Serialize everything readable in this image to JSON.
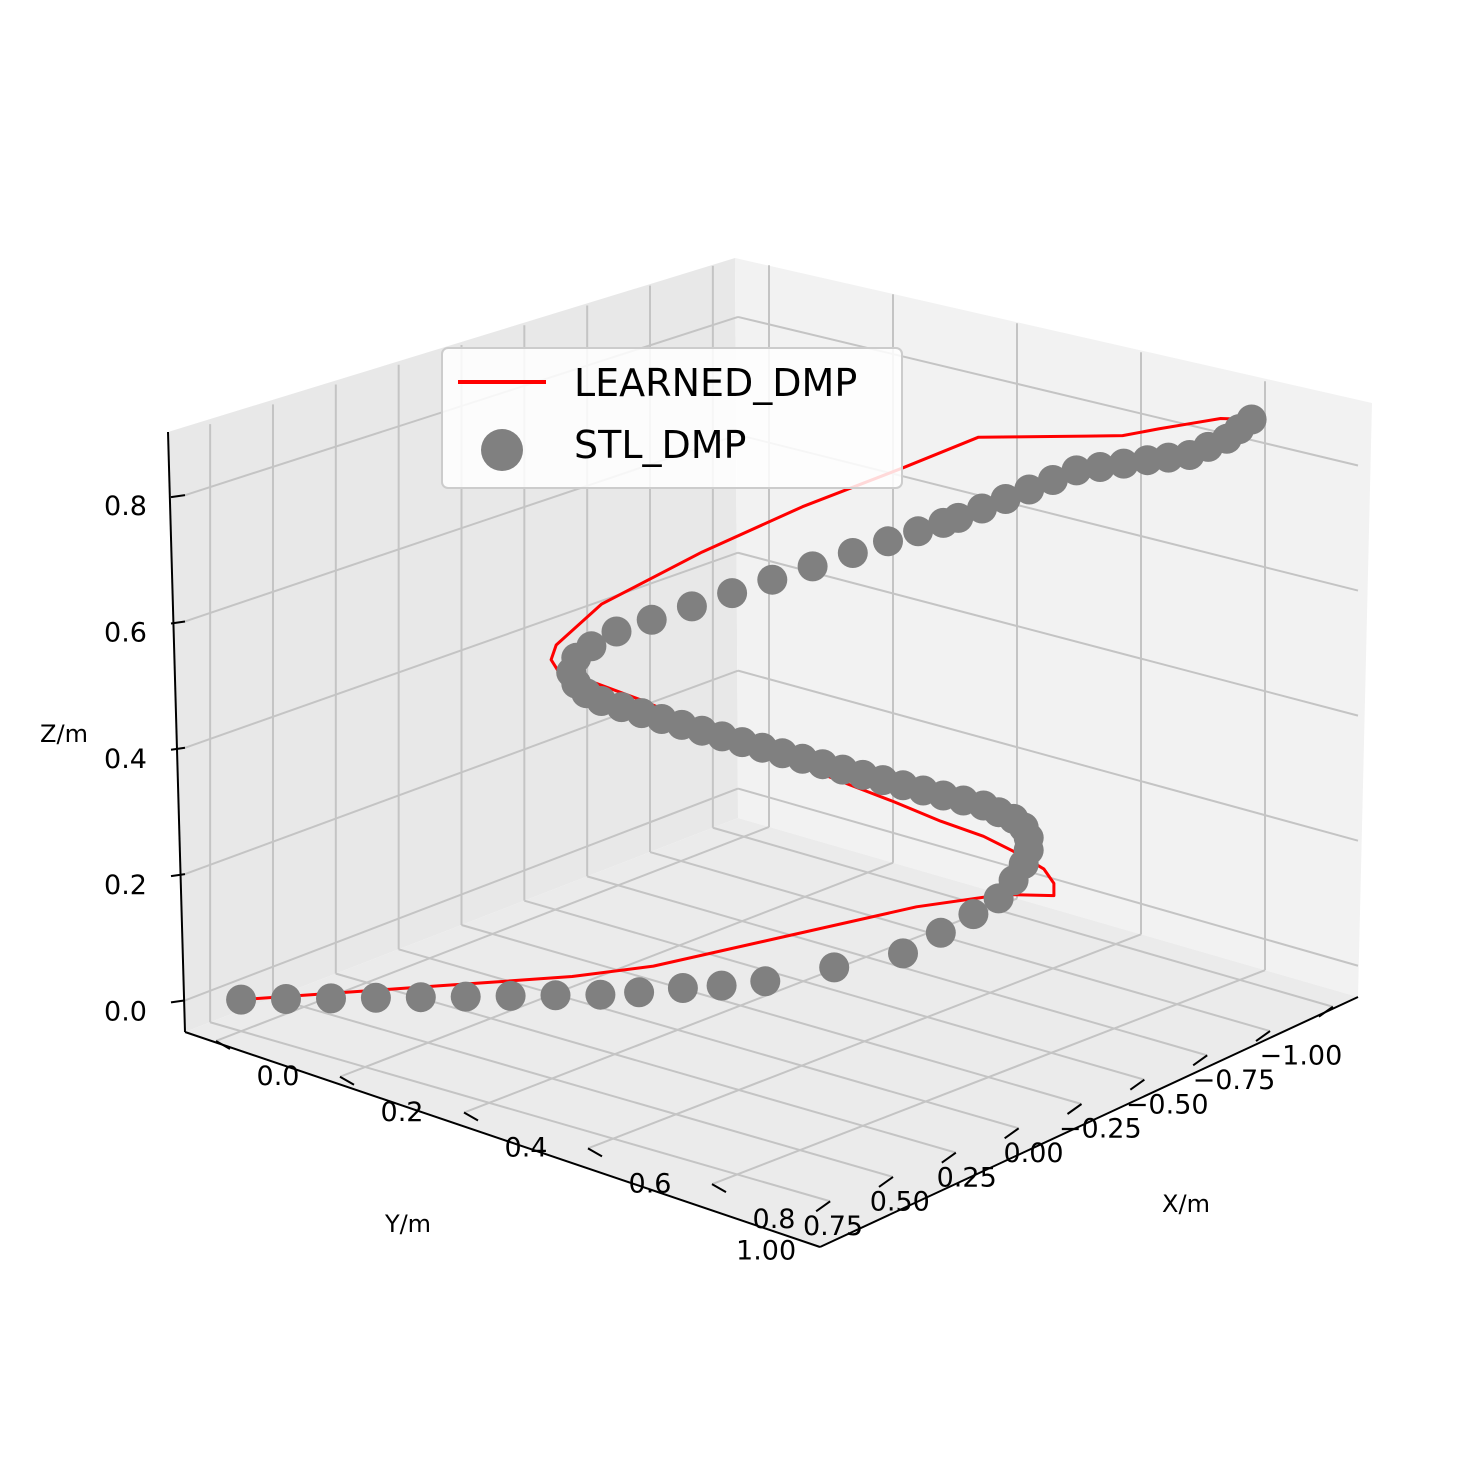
{
  "chart_data": {
    "type": "line",
    "projection": "3d",
    "title": "",
    "xlabel": "X/m",
    "ylabel": "Y/m",
    "zlabel": "Z/m",
    "x_ticks": [
      "0.0",
      "0.2",
      "0.4",
      "0.6",
      "0.8"
    ],
    "y_ticks": [
      "1.00",
      "0.75",
      "0.50",
      "0.25",
      "0.00",
      "−0.25",
      "−0.50",
      "−0.75",
      "−1.00"
    ],
    "z_ticks": [
      "0.0",
      "0.2",
      "0.4",
      "0.6",
      "0.8"
    ],
    "x_tick_values": [
      0,
      0.2,
      0.4,
      0.6,
      0.8
    ],
    "y_tick_values": [
      1,
      0.75,
      0.5,
      0.25,
      0,
      -0.25,
      -0.5,
      -0.75,
      -1
    ],
    "z_tick_values": [
      0,
      0.2,
      0.4,
      0.6,
      0.8
    ],
    "xlim": [
      -0.05,
      0.95
    ],
    "ylim": [
      -1.1,
      1.1
    ],
    "zlim": [
      -0.05,
      0.9
    ],
    "grid": true,
    "legend_position": "upper-center",
    "series": [
      {
        "name": "LEARNED_DMP",
        "style": "line",
        "color": "#ff0000",
        "x": [
          0.0,
          0.05,
          0.1,
          0.15,
          0.2,
          0.25,
          0.3,
          0.35,
          0.4,
          0.45,
          0.5,
          0.5,
          0.5,
          0.5,
          0.5,
          0.5,
          0.5,
          0.5,
          0.5,
          0.5,
          0.5,
          0.5,
          0.5,
          0.5,
          0.5,
          0.5,
          0.5,
          0.5,
          0.5,
          0.5,
          0.5,
          0.55,
          0.6,
          0.65,
          0.7,
          0.75,
          0.8,
          0.85,
          0.9
        ],
        "y": [
          1.0,
          0.86,
          0.72,
          0.58,
          0.44,
          0.3,
          0.1,
          -0.3,
          -0.7,
          -0.92,
          -1.0,
          -1.0,
          -0.96,
          -0.86,
          -0.72,
          -0.55,
          -0.36,
          -0.16,
          0.04,
          0.24,
          0.44,
          0.64,
          0.82,
          0.96,
          1.0,
          0.98,
          0.8,
          0.4,
          0.0,
          -0.4,
          -0.7,
          -0.72,
          -0.74,
          -0.76,
          -0.78,
          -0.8,
          -0.8,
          -0.8,
          -0.8
        ],
        "z": [
          0.0,
          0.0,
          0.0,
          0.0,
          0.0,
          0.0,
          0.0,
          0.0,
          0.0,
          0.0,
          0.0,
          0.02,
          0.05,
          0.09,
          0.14,
          0.19,
          0.25,
          0.31,
          0.37,
          0.43,
          0.49,
          0.55,
          0.6,
          0.63,
          0.66,
          0.68,
          0.72,
          0.75,
          0.77,
          0.78,
          0.79,
          0.8,
          0.81,
          0.82,
          0.83,
          0.85,
          0.87,
          0.89,
          0.9
        ]
      },
      {
        "name": "STL_DMP",
        "style": "scatter",
        "color": "#808080",
        "x": [
          0.0,
          0.04,
          0.08,
          0.12,
          0.16,
          0.2,
          0.24,
          0.28,
          0.32,
          0.35,
          0.38,
          0.41,
          0.44,
          0.47,
          0.5,
          0.5,
          0.5,
          0.5,
          0.5,
          0.5,
          0.5,
          0.5,
          0.5,
          0.5,
          0.5,
          0.5,
          0.5,
          0.5,
          0.5,
          0.5,
          0.5,
          0.5,
          0.5,
          0.5,
          0.5,
          0.5,
          0.5,
          0.5,
          0.5,
          0.5,
          0.5,
          0.5,
          0.5,
          0.5,
          0.5,
          0.5,
          0.5,
          0.5,
          0.5,
          0.5,
          0.5,
          0.5,
          0.5,
          0.5,
          0.5,
          0.5,
          0.5,
          0.5,
          0.5,
          0.5,
          0.5,
          0.53,
          0.56,
          0.59,
          0.62,
          0.65,
          0.68,
          0.71,
          0.74,
          0.77,
          0.8,
          0.83,
          0.86,
          0.88,
          0.9
        ],
        "y": [
          1.0,
          0.92,
          0.84,
          0.76,
          0.68,
          0.6,
          0.52,
          0.44,
          0.36,
          0.28,
          0.18,
          0.1,
          0.0,
          -0.2,
          -0.4,
          -0.55,
          -0.68,
          -0.78,
          -0.84,
          -0.88,
          -0.9,
          -0.9,
          -0.88,
          -0.84,
          -0.78,
          -0.72,
          -0.64,
          -0.56,
          -0.48,
          -0.4,
          -0.32,
          -0.24,
          -0.16,
          -0.08,
          0.0,
          0.08,
          0.16,
          0.24,
          0.32,
          0.4,
          0.48,
          0.56,
          0.64,
          0.72,
          0.8,
          0.86,
          0.9,
          0.92,
          0.9,
          0.84,
          0.74,
          0.6,
          0.44,
          0.28,
          0.12,
          -0.04,
          -0.2,
          -0.34,
          -0.46,
          -0.56,
          -0.62,
          -0.64,
          -0.66,
          -0.68,
          -0.7,
          -0.72,
          -0.74,
          -0.76,
          -0.78,
          -0.79,
          -0.8,
          -0.8,
          -0.8,
          -0.8,
          -0.8
        ],
        "z": [
          0.0,
          0.0,
          0.0,
          0.0,
          0.0,
          0.0,
          0.0,
          0.0,
          0.0,
          0.0,
          0.0,
          0.0,
          0.0,
          0.0,
          0.0,
          0.01,
          0.02,
          0.03,
          0.05,
          0.07,
          0.09,
          0.11,
          0.13,
          0.15,
          0.17,
          0.19,
          0.21,
          0.23,
          0.25,
          0.27,
          0.29,
          0.31,
          0.33,
          0.35,
          0.37,
          0.39,
          0.41,
          0.43,
          0.45,
          0.47,
          0.49,
          0.51,
          0.53,
          0.55,
          0.57,
          0.59,
          0.61,
          0.63,
          0.65,
          0.66,
          0.67,
          0.67,
          0.67,
          0.67,
          0.67,
          0.67,
          0.67,
          0.67,
          0.67,
          0.67,
          0.67,
          0.69,
          0.71,
          0.73,
          0.75,
          0.77,
          0.78,
          0.79,
          0.8,
          0.81,
          0.82,
          0.84,
          0.86,
          0.88,
          0.9
        ]
      }
    ]
  }
}
